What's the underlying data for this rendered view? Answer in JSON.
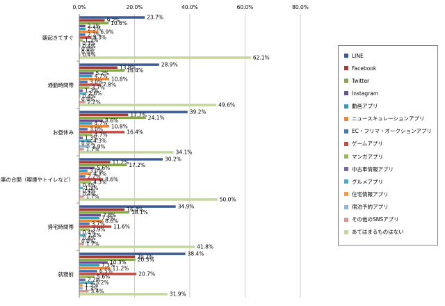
{
  "chart_data": {
    "type": "bar",
    "orientation": "horizontal",
    "xlim": [
      0,
      80
    ],
    "x_ticks": [
      "0.0%",
      "20.0%",
      "40.0%",
      "60.0%",
      "80.0%"
    ],
    "grid": true,
    "legend_position": "right",
    "categories": [
      "朝起きてすぐ",
      "通勤時間帯",
      "お昼休み",
      "仕事の合間（喫煙やトイレなど）",
      "帰宅時間帯",
      "就寝前"
    ],
    "series": [
      {
        "name": "LINE",
        "color": "#3b5b95",
        "values": [
          23.7,
          28.9,
          39.2,
          30.2,
          34.9,
          38.4
        ]
      },
      {
        "name": "Facebook",
        "color": "#a33a36",
        "values": [
          9.2,
          13.8,
          17.7,
          11.2,
          16.4,
          20.2
        ]
      },
      {
        "name": "Twitter",
        "color": "#86a84a",
        "values": [
          10.6,
          16.4,
          24.1,
          17.2,
          18.1,
          20.3
        ]
      },
      {
        "name": "Instagram",
        "color": "#6a4f8a",
        "values": [
          2.2,
          5.2,
          8.6,
          5.6,
          7.8,
          10.3
        ]
      },
      {
        "name": "動画アプリ",
        "color": "#3a9ab5",
        "values": [
          2.3,
          4.7,
          4.7,
          3.0,
          7.3,
          7.3
        ]
      },
      {
        "name": "ニュースキュレーションアプリ",
        "color": "#e6883e",
        "values": [
          6.9,
          10.8,
          10.8,
          4.3,
          8.6,
          11.2
        ]
      },
      {
        "name": "EC・フリマ・オークションアプリ",
        "color": "#4a74b0",
        "values": [
          2.2,
          3.0,
          3.0,
          2.2,
          3.7,
          6.5
        ]
      },
      {
        "name": "ゲームアプリ",
        "color": "#c24a46",
        "values": [
          4.3,
          7.8,
          16.4,
          8.6,
          11.6,
          20.7
        ]
      },
      {
        "name": "マンガアプリ",
        "color": "#9bbb59",
        "values": [
          1.3,
          3.7,
          4.7,
          4.3,
          3.9,
          5.6
        ]
      },
      {
        "name": "中古車情報アプリ",
        "color": "#7f63a2",
        "values": [
          0.3,
          1.3,
          1.3,
          0.4,
          0.4,
          2.2
        ]
      },
      {
        "name": "グルメアプリ",
        "color": "#4bacc6",
        "values": [
          0.4,
          2.6,
          4.3,
          1.3,
          2.4,
          5.2
        ]
      },
      {
        "name": "住宅情報アプリ",
        "color": "#f79646",
        "values": [
          0.0,
          0.4,
          0.0,
          0.4,
          0.4,
          1.3
        ]
      },
      {
        "name": "宿泊予約アプリ",
        "color": "#95b3d7",
        "values": [
          0.0,
          0.0,
          3.9,
          0.4,
          0.0,
          1.3
        ]
      },
      {
        "name": "その他のSNSアプリ",
        "color": "#d99694",
        "values": [
          0.4,
          2.2,
          1.7,
          1.7,
          1.7,
          3.4
        ]
      },
      {
        "name": "あてはまるものはない",
        "color": "#c4d79b",
        "values": [
          62.1,
          49.6,
          34.1,
          50.0,
          41.8,
          31.9
        ]
      }
    ]
  }
}
